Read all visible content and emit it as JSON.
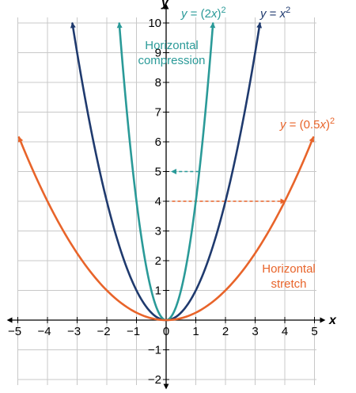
{
  "chart_data": {
    "type": "line",
    "xlabel": "x",
    "ylabel": "y",
    "xlim": [
      -5,
      5
    ],
    "ylim": [
      -2,
      10
    ],
    "x_ticks": [
      -5,
      -4,
      -3,
      -2,
      -1,
      0,
      1,
      2,
      3,
      4,
      5
    ],
    "y_ticks": [
      -2,
      -1,
      1,
      2,
      3,
      4,
      5,
      6,
      7,
      8,
      9,
      10
    ],
    "grid": true,
    "series": [
      {
        "name": "y = x²",
        "equation": "x^2",
        "coef": 1,
        "color": "#1f3a6e",
        "x_range": [
          -3.16,
          3.16
        ]
      },
      {
        "name": "y = (2x)²",
        "equation": "(2x)^2",
        "coef": 2,
        "color": "#2a9a98",
        "x_range": [
          -1.58,
          1.58
        ]
      },
      {
        "name": "y = (0.5x)²",
        "equation": "(0.5x)^2",
        "coef": 0.5,
        "color": "#e8642a",
        "x_range": [
          -4.96,
          4.96
        ]
      }
    ],
    "series_labels": [
      {
        "prefix": "y = (2x)",
        "sup": "2",
        "color": "#2a9a98"
      },
      {
        "prefix": "y = x",
        "sup": "2",
        "color": "#1f3a6e"
      },
      {
        "prefix": "y = (0.5x)",
        "sup": "2",
        "color": "#e8642a"
      }
    ],
    "annotations": [
      {
        "lines": [
          "Horizontal",
          "compression"
        ],
        "color": "#2a9a98"
      },
      {
        "lines": [
          "Horizontal",
          "stretch"
        ],
        "color": "#e8642a"
      }
    ],
    "arrows": [
      {
        "from": [
          1.1,
          5
        ],
        "to": [
          0.2,
          5
        ],
        "color": "#2a9a98"
      },
      {
        "from": [
          0.2,
          4
        ],
        "to": [
          4.0,
          4
        ],
        "color": "#e8642a"
      }
    ]
  }
}
